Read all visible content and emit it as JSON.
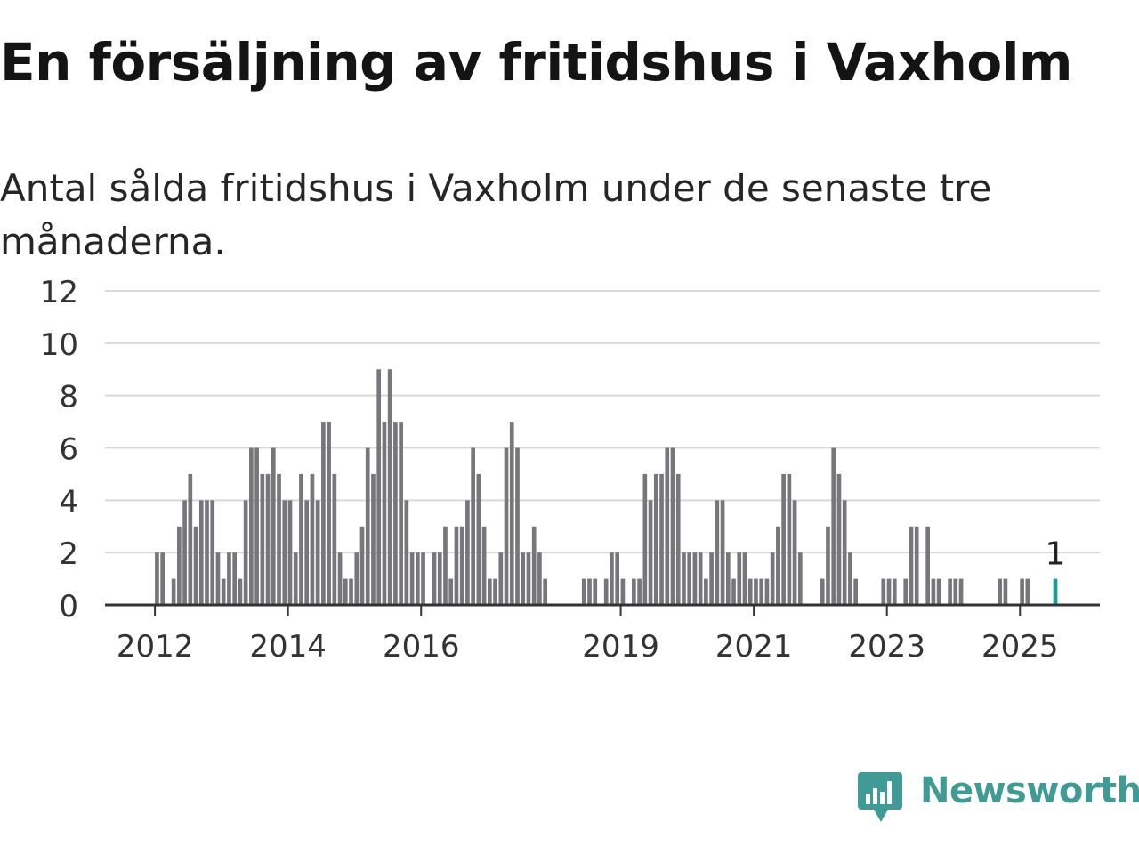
{
  "title": "En försäljning av fritidshus i Vaxholm",
  "subtitle": "Antal sålda fritidshus i Vaxholm under de senaste tre månaderna.",
  "brand": {
    "name": "Newsworthy",
    "logo_icon": "newsworthy-chart-bubble-icon",
    "color": "#3f9b93"
  },
  "colors": {
    "bar": "#77767b",
    "highlight": "#1f9c8f",
    "grid": "#d9d9d9",
    "axis": "#333333"
  },
  "chart_data": {
    "type": "bar",
    "title": "En försäljning av fritidshus i Vaxholm",
    "subtitle": "Antal sålda fritidshus i Vaxholm under de senaste tre månaderna.",
    "xlabel": "",
    "ylabel": "",
    "ylim": [
      0,
      12
    ],
    "yticks": [
      0,
      2,
      4,
      6,
      8,
      10,
      12
    ],
    "xlim": [
      2011.25,
      2026.2
    ],
    "xticks": [
      2012,
      2014,
      2016,
      2019,
      2021,
      2023,
      2025
    ],
    "grid": true,
    "legend": "none",
    "bar_width_months": 0.75,
    "highlight": {
      "date": "2025-07",
      "label": "1"
    },
    "series": [
      {
        "x": [
          "2012-01",
          "2012-02",
          "2012-03",
          "2012-04",
          "2012-05",
          "2012-06",
          "2012-07",
          "2012-08",
          "2012-09",
          "2012-10",
          "2012-11",
          "2012-12",
          "2013-01",
          "2013-02",
          "2013-03",
          "2013-04",
          "2013-05",
          "2013-06",
          "2013-07",
          "2013-08",
          "2013-09",
          "2013-10",
          "2013-11",
          "2013-12",
          "2014-01",
          "2014-02",
          "2014-03",
          "2014-04",
          "2014-05",
          "2014-06",
          "2014-07",
          "2014-08",
          "2014-09",
          "2014-10",
          "2014-11",
          "2014-12",
          "2015-01",
          "2015-02",
          "2015-03",
          "2015-04",
          "2015-05",
          "2015-06",
          "2015-07",
          "2015-08",
          "2015-09",
          "2015-10",
          "2015-11",
          "2015-12",
          "2016-01",
          "2016-02",
          "2016-03",
          "2016-04",
          "2016-05",
          "2016-06",
          "2016-07",
          "2016-08",
          "2016-09",
          "2016-10",
          "2016-11",
          "2016-12",
          "2017-01",
          "2017-02",
          "2017-03",
          "2017-04",
          "2017-05",
          "2017-06",
          "2017-07",
          "2017-08",
          "2017-09",
          "2017-10",
          "2017-11",
          "2017-12",
          "2018-06",
          "2018-07",
          "2018-08",
          "2018-10",
          "2018-11",
          "2018-12",
          "2019-01",
          "2019-03",
          "2019-04",
          "2019-05",
          "2019-06",
          "2019-07",
          "2019-08",
          "2019-09",
          "2019-10",
          "2019-11",
          "2019-12",
          "2020-01",
          "2020-02",
          "2020-03",
          "2020-04",
          "2020-05",
          "2020-06",
          "2020-07",
          "2020-08",
          "2020-09",
          "2020-10",
          "2020-11",
          "2020-12",
          "2021-01",
          "2021-02",
          "2021-03",
          "2021-04",
          "2021-05",
          "2021-06",
          "2021-07",
          "2021-08",
          "2021-09",
          "2021-10",
          "2022-01",
          "2022-02",
          "2022-03",
          "2022-04",
          "2022-05",
          "2022-06",
          "2022-07",
          "2022-12",
          "2023-01",
          "2023-02",
          "2023-04",
          "2023-05",
          "2023-06",
          "2023-08",
          "2023-09",
          "2023-10",
          "2023-12",
          "2024-01",
          "2024-02",
          "2024-09",
          "2024-10",
          "2025-01",
          "2025-02",
          "2025-07"
        ],
        "values": [
          2,
          2,
          0,
          1,
          3,
          4,
          5,
          3,
          4,
          4,
          4,
          2,
          1,
          2,
          2,
          1,
          4,
          6,
          6,
          5,
          5,
          6,
          5,
          4,
          4,
          2,
          5,
          4,
          5,
          4,
          7,
          7,
          5,
          2,
          1,
          1,
          2,
          3,
          6,
          5,
          9,
          7,
          9,
          7,
          7,
          4,
          2,
          2,
          2,
          0,
          2,
          2,
          3,
          1,
          3,
          3,
          4,
          6,
          5,
          3,
          1,
          1,
          2,
          6,
          7,
          6,
          2,
          2,
          3,
          2,
          1,
          0,
          1,
          1,
          1,
          1,
          2,
          2,
          1,
          1,
          1,
          5,
          4,
          5,
          5,
          6,
          6,
          5,
          2,
          2,
          2,
          2,
          1,
          2,
          4,
          4,
          2,
          1,
          2,
          2,
          1,
          1,
          1,
          1,
          2,
          3,
          5,
          5,
          4,
          2,
          0,
          1,
          3,
          6,
          5,
          4,
          2,
          1,
          1,
          1,
          1,
          1,
          3,
          3,
          3,
          1,
          1,
          1,
          1,
          1,
          1,
          1,
          1,
          1,
          1
        ]
      }
    ]
  }
}
